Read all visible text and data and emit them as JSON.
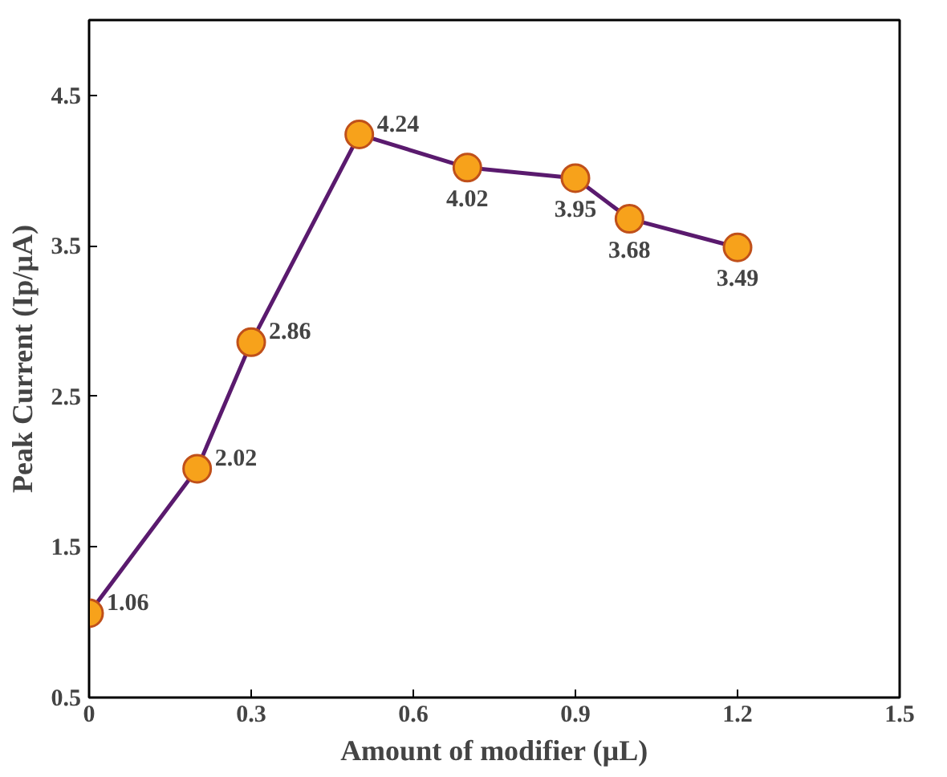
{
  "chart_data": {
    "type": "line",
    "xlabel": "Amount of modifier (µL)",
    "ylabel": "Peak Current (Ip/µA)",
    "x": [
      0,
      0.2,
      0.3,
      0.5,
      0.7,
      0.9,
      1.0,
      1.2
    ],
    "values": [
      1.06,
      2.02,
      2.86,
      4.24,
      4.02,
      3.95,
      3.68,
      3.49
    ],
    "color": "#5a1a6e",
    "marker": "circle",
    "line_style": "solid",
    "data_labels": true,
    "grid": false,
    "xlim": [
      0,
      1.5
    ],
    "xticks": [
      0,
      0.3,
      0.6,
      0.9,
      1.2,
      1.5
    ],
    "ylim": [
      0.5,
      5.0
    ],
    "yticks": [
      0.5,
      1.5,
      2.5,
      3.5,
      4.5
    ]
  }
}
